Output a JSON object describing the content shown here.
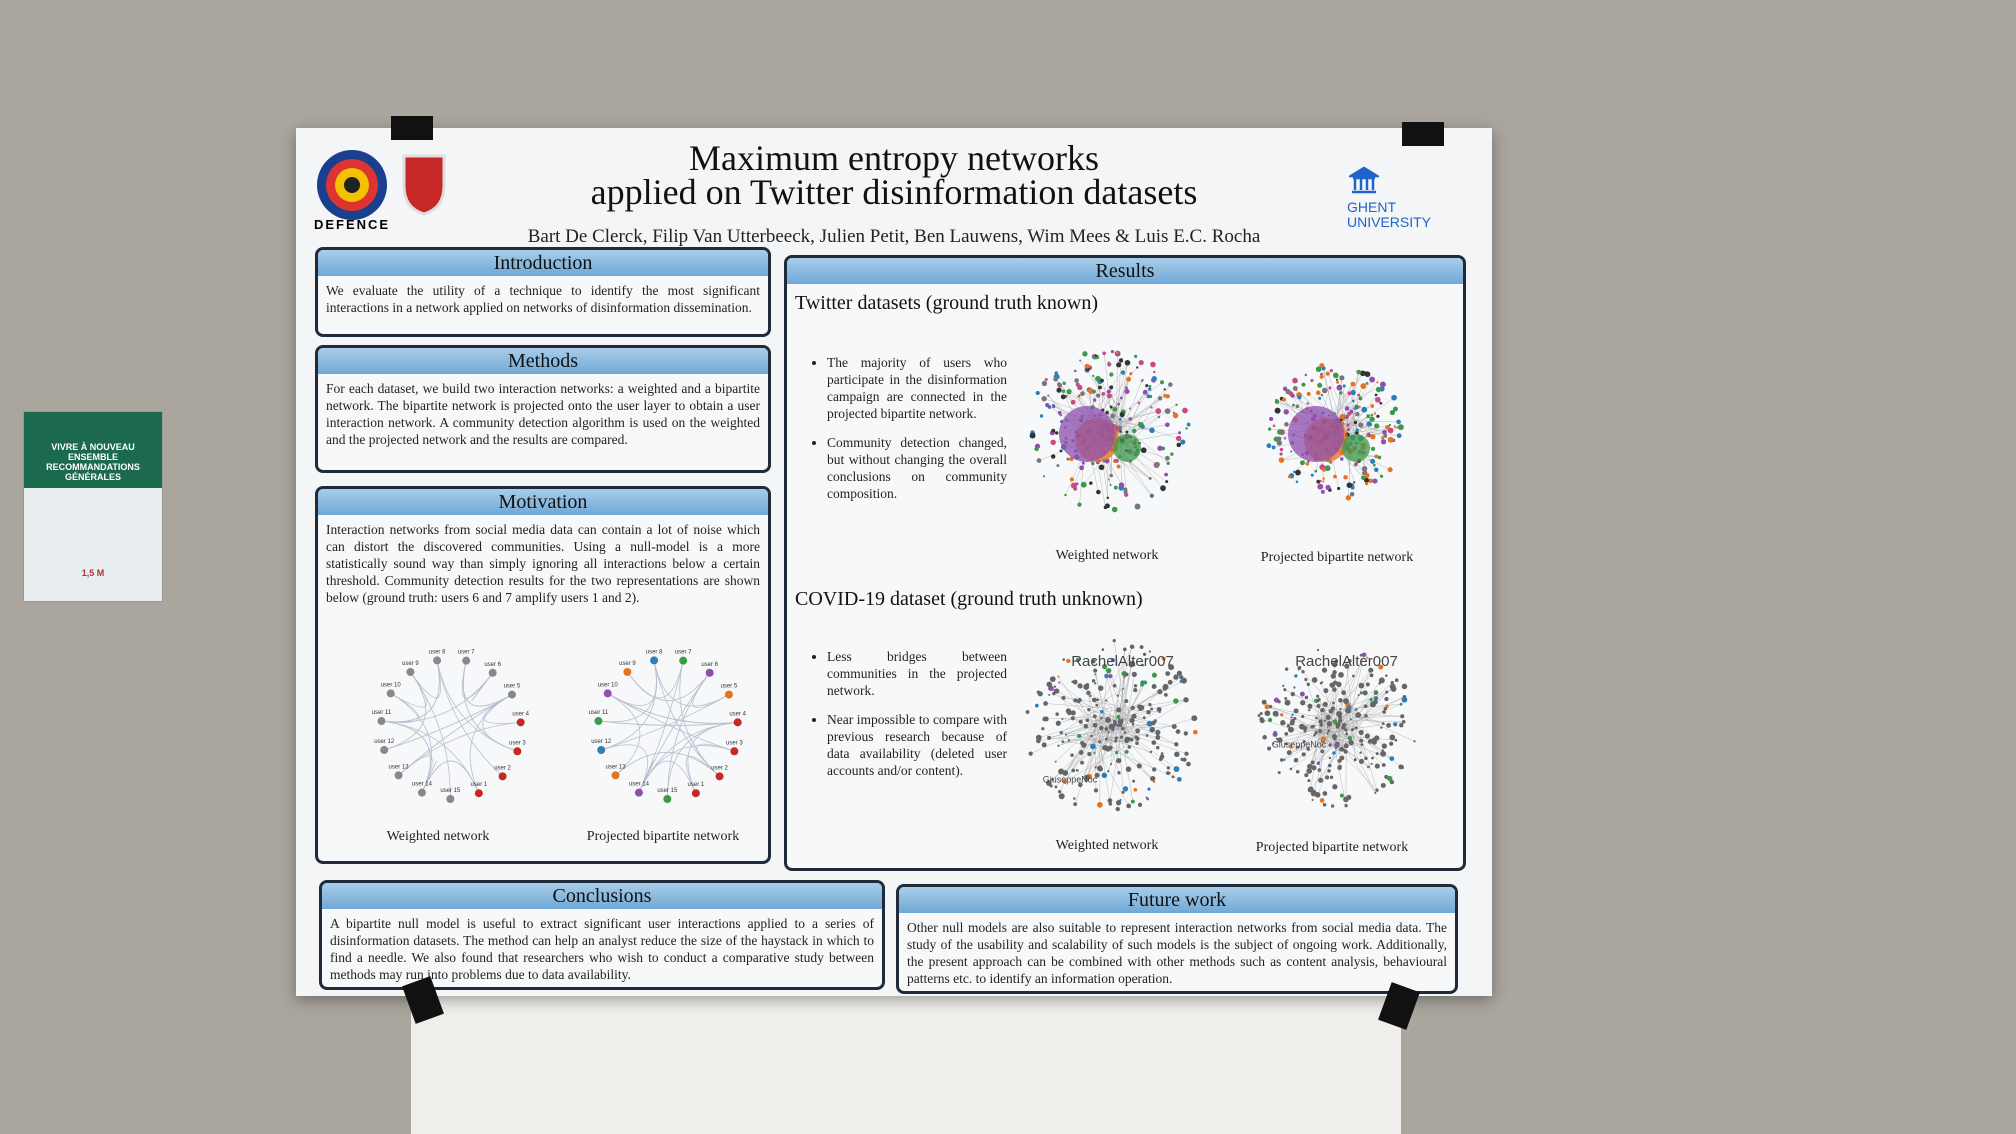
{
  "poster": {
    "title": [
      "Maximum entropy networks",
      "applied on Twitter disinformation datasets"
    ],
    "authors": "Bart De Clerck, Filip Van Utterbeeck, Julien Petit, Ben Lauwens, Wim Mees & Luis E.C. Rocha",
    "logos": {
      "defence": "DEFENCE",
      "ghent": [
        "GHENT",
        "UNIVERSITY"
      ]
    },
    "introduction": {
      "heading": "Introduction",
      "text": "We evaluate the utility of a technique to identify the most significant interactions in a network applied on networks of disinformation dissemination."
    },
    "methods": {
      "heading": "Methods",
      "text": "For each dataset, we build two interaction networks: a weighted and a bipartite network. The bipartite network is projected onto the user layer to obtain a user interaction network. A community detection algorithm is used on the weighted and the projected network and the results are compared."
    },
    "motivation": {
      "heading": "Motivation",
      "text": "Interaction networks from social media data can contain a lot of noise which can distort the discovered communities. Using a null-model is a more statistically sound way than simply ignoring all interactions below a certain threshold. Community detection results for the two representations are shown below (ground truth: users 6 and 7 amplify users 1 and 2).",
      "figures": [
        {
          "caption": "Weighted network",
          "node_labels": [
            "user 1",
            "user 2",
            "user 3",
            "user 4",
            "user 5",
            "user 6",
            "user 7",
            "user 8",
            "user 9",
            "user 10",
            "user 11",
            "user 12",
            "user 13",
            "user 14",
            "user 15"
          ]
        },
        {
          "caption": "Projected bipartite network",
          "node_labels": [
            "user 1",
            "user 2",
            "user 3",
            "user 4",
            "user 5",
            "user 6",
            "user 7",
            "user 8",
            "user 9",
            "user 10",
            "user 11",
            "user 12",
            "user 13",
            "user 14",
            "user 15"
          ]
        }
      ]
    },
    "results": {
      "heading": "Results",
      "sections": [
        {
          "heading": "Twitter datasets (ground truth known)",
          "bullets": [
            "The majority of users who participate in the disinformation campaign are connected in the projected bipartite network.",
            "Community detection changed, but without changing the overall conclusions on community composition."
          ],
          "figures": [
            {
              "caption": "Weighted network"
            },
            {
              "caption": "Projected bipartite network"
            }
          ]
        },
        {
          "heading": "COVID-19 dataset (ground truth unknown)",
          "bullets": [
            "Less bridges between communities in the projected network.",
            "Near impossible to compare with previous research because of data availability (deleted user accounts and/or content)."
          ],
          "figures": [
            {
              "caption": "Weighted network",
              "node_labels": [
                "RachelAlter007",
                "GiuseppeNoc"
              ]
            },
            {
              "caption": "Projected bipartite network",
              "node_labels": [
                "RachelAlter007",
                "GiuseppeNoc"
              ]
            }
          ]
        }
      ]
    },
    "conclusions": {
      "heading": "Conclusions",
      "text": "A bipartite null model is useful to extract significant user interactions applied to a series of disinformation datasets. The method can help an analyst reduce the size of the haystack in which to find a needle. We also found that researchers who wish to conduct a comparative study between methods may run into problems due to data availability."
    },
    "future_work": {
      "heading": "Future work",
      "text": "Other null models are also suitable to represent interaction networks from social media data. The study of the usability and scalability of such models is the subject of ongoing work. Additionally, the present approach can be combined with other methods such as content analysis, behavioural patterns etc. to identify an information operation."
    }
  },
  "wall_sign": {
    "lines": [
      "VIVRE À NOUVEAU ENSEMBLE",
      "RECOMMANDATIONS GÉNÉRALES",
      "1,5 M"
    ]
  }
}
